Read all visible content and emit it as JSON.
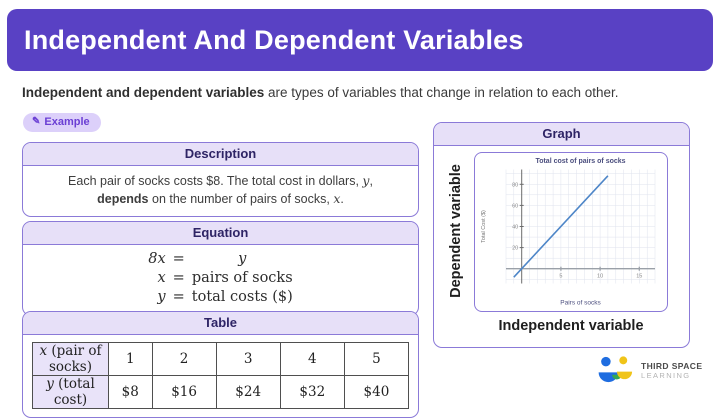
{
  "colors": {
    "header_purple": "#5941c4",
    "card_border_purple": "#8b7ad8",
    "band_lavender": "#e7e0f8",
    "badge_bg": "#dcd0fa",
    "badge_text": "#6b3fd4",
    "chart_line_blue": "#4e86c8"
  },
  "header": {
    "title": "Independent And Dependent Variables"
  },
  "intro": {
    "bold_text": "Independent and dependent variables",
    "rest_text": " are types of variables that change in relation to each other."
  },
  "badge": {
    "label": "Example",
    "icon": "pencil-icon"
  },
  "description": {
    "heading": "Description",
    "text_part1": "Each pair of socks costs $8. The total cost in dollars, ",
    "var_y": "y",
    "text_part2": ",",
    "bold_word": "depends",
    "text_part3": " on the number of pairs of socks, ",
    "var_x": "x",
    "text_part4": "."
  },
  "equation": {
    "heading": "Equation",
    "rows": [
      {
        "lhs": "8x",
        "rel": "=",
        "rhs": "y"
      },
      {
        "lhs": "x",
        "rel": "=",
        "rhs": "pairs of socks"
      },
      {
        "lhs": "y",
        "rel": "=",
        "rhs": "total costs ($)"
      }
    ]
  },
  "table": {
    "heading": "Table",
    "rows": [
      {
        "label_var": "x",
        "label_rest": " (pair of socks)",
        "values": [
          "1",
          "2",
          "3",
          "4",
          "5"
        ]
      },
      {
        "label_var": "y",
        "label_rest": " (total cost)",
        "values": [
          "$8",
          "$16",
          "$24",
          "$32",
          "$40"
        ]
      }
    ]
  },
  "graph": {
    "heading": "Graph",
    "dependent_label": "Dependent variable",
    "independent_label": "Independent variable"
  },
  "chart_data": {
    "type": "line",
    "title": "Total cost of pairs of socks",
    "xlabel": "Pairs of socks",
    "ylabel": "Total Cost ($)",
    "x_ticks": [
      5,
      10,
      15
    ],
    "y_ticks": [
      20,
      40,
      60,
      80
    ],
    "xlim": [
      -2,
      17
    ],
    "ylim": [
      -14,
      94
    ],
    "grid": true,
    "legend": false,
    "line_color": "#4e86c8",
    "points": [
      [
        -1,
        -8
      ],
      [
        11,
        88
      ]
    ]
  },
  "logo": {
    "line1": "THIRD SPACE",
    "line2": "LEARNING"
  }
}
